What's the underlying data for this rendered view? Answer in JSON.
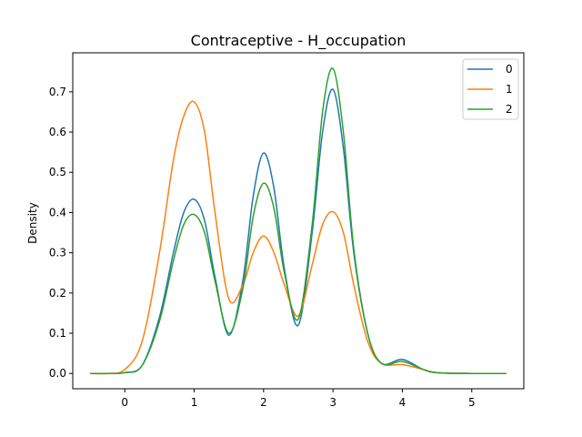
{
  "chart_data": {
    "type": "line",
    "title": "Contraceptive - H_occupation",
    "xlabel": "",
    "ylabel": "Density",
    "xlim": [
      -0.75,
      5.75
    ],
    "ylim": [
      -0.038,
      0.797
    ],
    "xticks": [
      0,
      1,
      2,
      3,
      4,
      5
    ],
    "yticks": [
      0.0,
      0.1,
      0.2,
      0.3,
      0.4,
      0.5,
      0.6,
      0.7
    ],
    "xtick_labels": [
      "0",
      "1",
      "2",
      "3",
      "4",
      "5"
    ],
    "ytick_labels": [
      "0.0",
      "0.1",
      "0.2",
      "0.3",
      "0.4",
      "0.5",
      "0.6",
      "0.7"
    ],
    "grid": false,
    "legend_position": "top-right",
    "x": [
      -0.5,
      -0.25,
      0.0,
      0.25,
      0.5,
      0.7,
      0.85,
      1.0,
      1.15,
      1.3,
      1.5,
      1.7,
      1.85,
      2.0,
      2.15,
      2.3,
      2.5,
      2.7,
      2.85,
      3.0,
      3.15,
      3.3,
      3.5,
      3.7,
      4.0,
      4.3,
      4.5,
      5.0,
      5.5
    ],
    "series": [
      {
        "name": "0",
        "color": "#1f77b4",
        "values": [
          0.0,
          0.0,
          0.002,
          0.02,
          0.14,
          0.3,
          0.4,
          0.433,
          0.38,
          0.24,
          0.095,
          0.23,
          0.44,
          0.548,
          0.46,
          0.26,
          0.12,
          0.35,
          0.6,
          0.706,
          0.56,
          0.3,
          0.1,
          0.025,
          0.035,
          0.01,
          0.002,
          0.0,
          0.0
        ]
      },
      {
        "name": "1",
        "color": "#ff7f0e",
        "values": [
          0.0,
          0.0,
          0.01,
          0.08,
          0.3,
          0.53,
          0.64,
          0.675,
          0.6,
          0.4,
          0.185,
          0.22,
          0.3,
          0.342,
          0.3,
          0.22,
          0.143,
          0.27,
          0.37,
          0.402,
          0.35,
          0.22,
          0.08,
          0.025,
          0.022,
          0.01,
          0.002,
          0.0,
          0.0
        ]
      },
      {
        "name": "2",
        "color": "#2ca02c",
        "values": [
          0.0,
          0.0,
          0.002,
          0.02,
          0.13,
          0.28,
          0.37,
          0.395,
          0.35,
          0.23,
          0.1,
          0.21,
          0.39,
          0.473,
          0.41,
          0.25,
          0.135,
          0.37,
          0.65,
          0.758,
          0.6,
          0.31,
          0.1,
          0.025,
          0.03,
          0.01,
          0.002,
          0.0,
          0.0
        ]
      }
    ]
  }
}
